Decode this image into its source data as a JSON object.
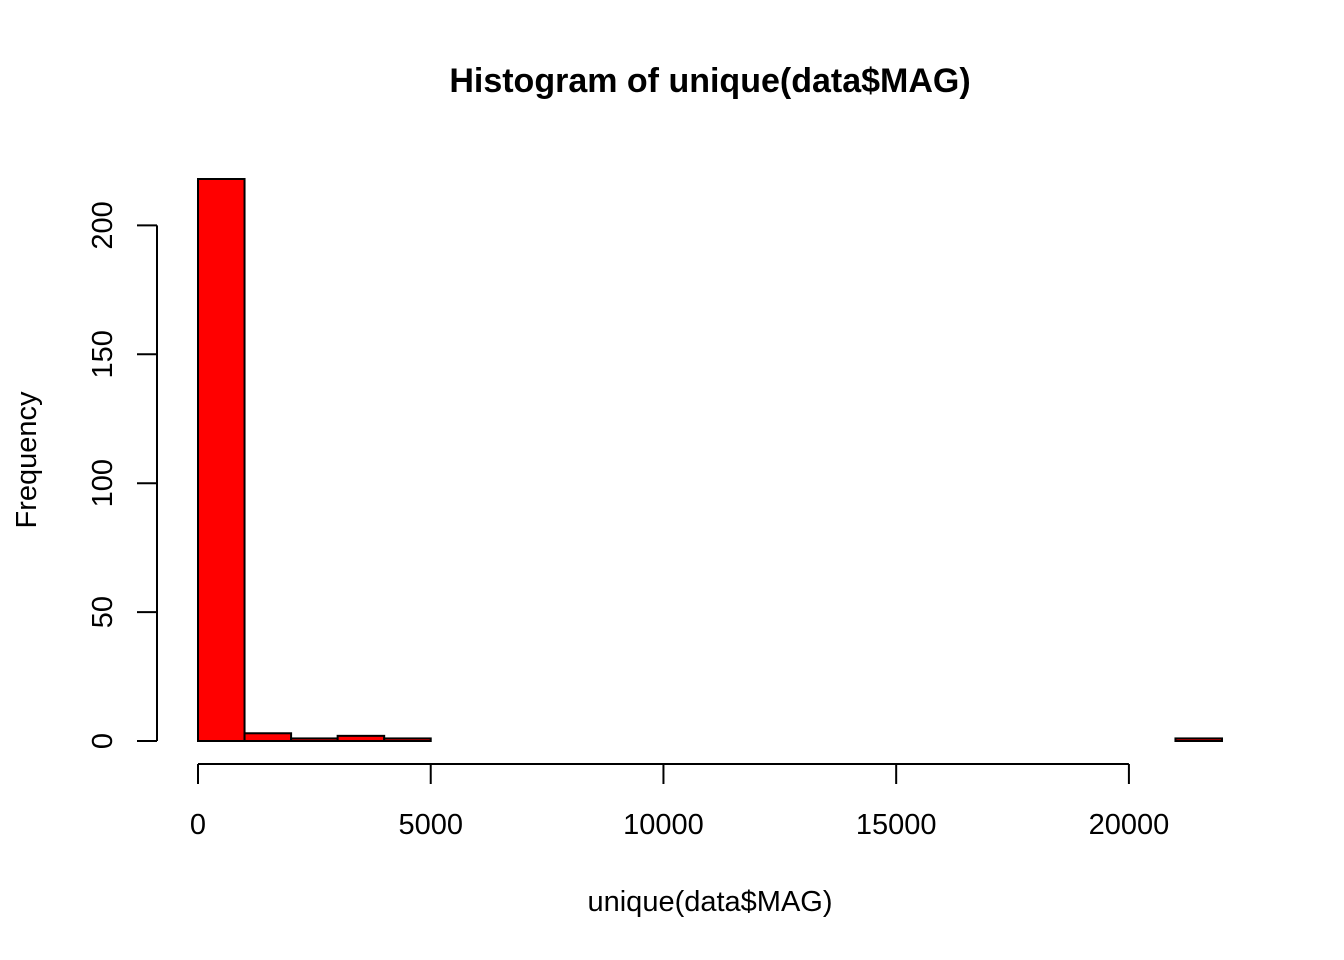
{
  "chart_data": {
    "type": "bar",
    "subtype": "histogram",
    "title": "Histogram of unique(data$MAG)",
    "xlabel": "unique(data$MAG)",
    "ylabel": "Frequency",
    "bar_color": "#ff0000",
    "bin_width": 1000,
    "bins": [
      {
        "x0": 0,
        "x1": 1000,
        "count": 218
      },
      {
        "x0": 1000,
        "x1": 2000,
        "count": 3
      },
      {
        "x0": 2000,
        "x1": 3000,
        "count": 1
      },
      {
        "x0": 3000,
        "x1": 4000,
        "count": 2
      },
      {
        "x0": 4000,
        "x1": 5000,
        "count": 1
      },
      {
        "x0": 5000,
        "x1": 6000,
        "count": 0
      },
      {
        "x0": 6000,
        "x1": 7000,
        "count": 0
      },
      {
        "x0": 7000,
        "x1": 8000,
        "count": 0
      },
      {
        "x0": 8000,
        "x1": 9000,
        "count": 0
      },
      {
        "x0": 9000,
        "x1": 10000,
        "count": 0
      },
      {
        "x0": 10000,
        "x1": 11000,
        "count": 0
      },
      {
        "x0": 11000,
        "x1": 12000,
        "count": 0
      },
      {
        "x0": 12000,
        "x1": 13000,
        "count": 0
      },
      {
        "x0": 13000,
        "x1": 14000,
        "count": 0
      },
      {
        "x0": 14000,
        "x1": 15000,
        "count": 0
      },
      {
        "x0": 15000,
        "x1": 16000,
        "count": 0
      },
      {
        "x0": 16000,
        "x1": 17000,
        "count": 0
      },
      {
        "x0": 17000,
        "x1": 18000,
        "count": 0
      },
      {
        "x0": 18000,
        "x1": 19000,
        "count": 0
      },
      {
        "x0": 19000,
        "x1": 20000,
        "count": 0
      },
      {
        "x0": 20000,
        "x1": 21000,
        "count": 0
      },
      {
        "x0": 21000,
        "x1": 22000,
        "count": 1
      }
    ],
    "xlim": [
      0,
      22000
    ],
    "ylim": [
      0,
      218
    ],
    "x_ticks": [
      0,
      5000,
      10000,
      15000,
      20000
    ],
    "x_tick_labels": [
      "0",
      "5000",
      "10000",
      "15000",
      "20000"
    ],
    "y_ticks": [
      0,
      50,
      100,
      150,
      200
    ],
    "y_tick_labels": [
      "0",
      "50",
      "100",
      "150",
      "200"
    ],
    "grid": false,
    "legend": "none"
  }
}
